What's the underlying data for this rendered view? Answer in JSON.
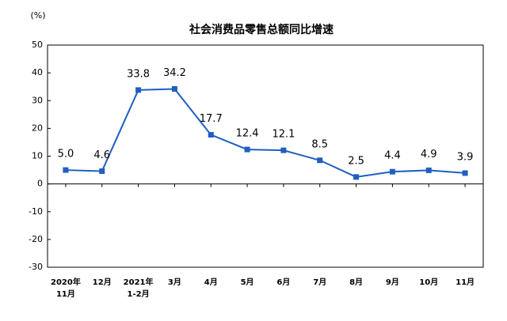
{
  "chart_data": {
    "type": "line",
    "title": "社会消费品零售总额同比增速",
    "y_label": "(%)",
    "categories": [
      "2020年\n11月",
      "12月",
      "2021年\n1-2月",
      "3月",
      "4月",
      "5月",
      "6月",
      "7月",
      "8月",
      "9月",
      "10月",
      "11月"
    ],
    "series": [
      {
        "name": "社会消费品零售总额同比增速",
        "color": "#1f5fbf",
        "values": [
          5.0,
          4.6,
          33.8,
          34.2,
          17.7,
          12.4,
          12.1,
          8.5,
          2.5,
          4.4,
          4.9,
          3.9
        ],
        "value_labels": [
          "5.0",
          "4.6",
          "33.8",
          "34.2",
          "17.7",
          "12.4",
          "12.1",
          "8.5",
          "2.5",
          "4.4",
          "4.9",
          "3.9"
        ]
      }
    ],
    "ylim": [
      -30,
      50
    ],
    "yticks": [
      -30,
      -20,
      -10,
      0,
      10,
      20,
      30,
      40,
      50
    ],
    "grid": false
  }
}
